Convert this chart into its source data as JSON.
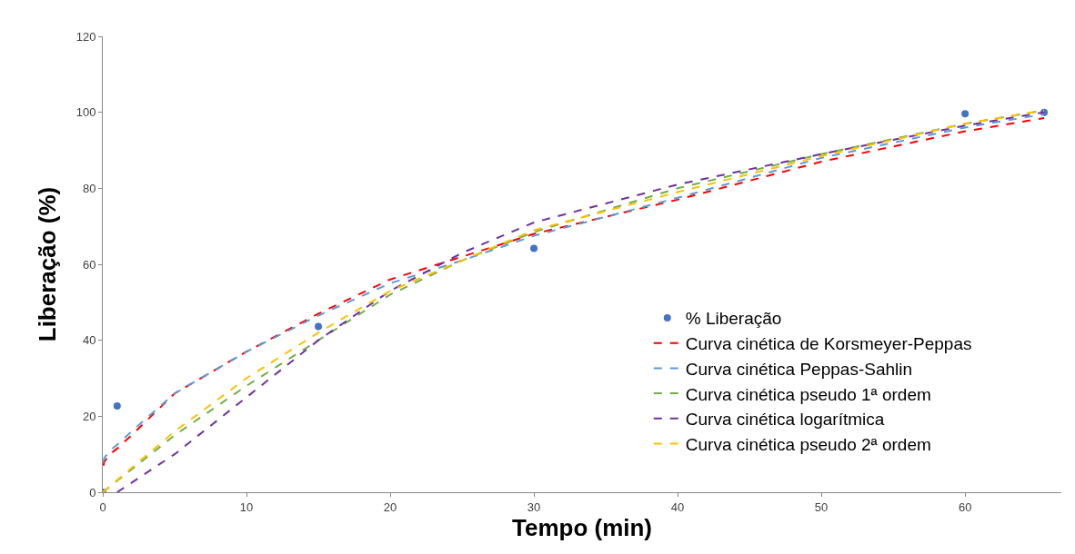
{
  "chart_data": {
    "type": "line",
    "xlabel": "Tempo (min)",
    "ylabel": "Liberação (%)",
    "xlim": [
      0,
      66.7
    ],
    "ylim": [
      0,
      120
    ],
    "xticks": [
      0,
      10,
      20,
      30,
      40,
      50,
      60
    ],
    "yticks": [
      0,
      20,
      40,
      60,
      80,
      100,
      120
    ],
    "grid": false,
    "legend": "right",
    "marker": "none",
    "line_style": "dashed",
    "series": [
      {
        "name": "% Liberação",
        "type": "scatter",
        "marker": "circle",
        "color": "#4472c4",
        "x": [
          0,
          1,
          15,
          30,
          60,
          65.5
        ],
        "values": [
          0,
          22.7,
          43.6,
          64.2,
          99.6,
          100
        ]
      },
      {
        "name": "Curva cinética de Korsmeyer-Peppas",
        "color": "#ff0000",
        "x": [
          0.05,
          0.1,
          0.5,
          1,
          2,
          5,
          10,
          15,
          20,
          25,
          30,
          40,
          50,
          60,
          65.5
        ],
        "values": [
          7,
          8,
          10,
          11.5,
          15,
          26,
          37,
          47,
          56,
          62,
          68,
          77,
          87,
          95,
          98.5
        ]
      },
      {
        "name": "Curva cinética Peppas-Sahlin",
        "color": "#5b9bd5",
        "x": [
          0.05,
          0.1,
          0.5,
          1,
          2,
          5,
          10,
          15,
          20,
          25,
          30,
          40,
          50,
          60,
          65.5
        ],
        "values": [
          8,
          9,
          11,
          12.5,
          16,
          26,
          37,
          46.5,
          55,
          61,
          67.5,
          77.5,
          88,
          96,
          99.5
        ]
      },
      {
        "name": "Curva cinética pseudo 1ª ordem",
        "color": "#70ad47",
        "x": [
          0,
          5,
          10,
          15,
          20,
          25,
          30,
          40,
          50,
          60,
          65.5
        ],
        "values": [
          0,
          15,
          28,
          40,
          52,
          61,
          68.5,
          80,
          89,
          97,
          100.5
        ]
      },
      {
        "name": "Curva cinética logarítmica",
        "color": "#7030a0",
        "x": [
          1,
          5,
          10,
          15,
          20,
          25,
          30,
          40,
          50,
          60,
          65.5
        ],
        "values": [
          0,
          10,
          25,
          40,
          53,
          63,
          71,
          81,
          89,
          96.5,
          100
        ]
      },
      {
        "name": "Curva cinética pseudo 2ª ordem",
        "color": "#ffc000",
        "x": [
          0,
          5,
          10,
          15,
          20,
          25,
          30,
          40,
          50,
          60,
          65.5
        ],
        "values": [
          0,
          16,
          30,
          42,
          53,
          61,
          69,
          79,
          88.5,
          97,
          100.5
        ]
      }
    ]
  }
}
